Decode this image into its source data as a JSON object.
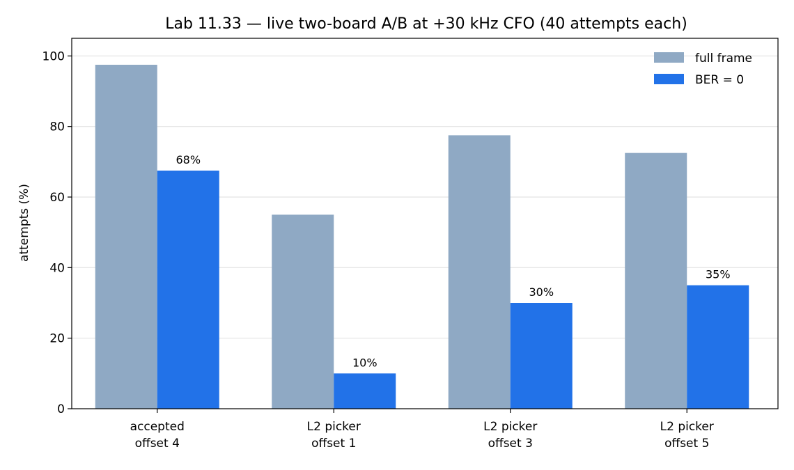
{
  "chart_data": {
    "type": "bar",
    "title": "Lab 11.33 — live two-board A/B at +30 kHz CFO (40 attempts each)",
    "xlabel": "",
    "ylabel": "attempts (%)",
    "ylim": [
      0,
      105
    ],
    "yticks": [
      0,
      20,
      40,
      60,
      80,
      100
    ],
    "grid": "horizontal",
    "legend_position": "top-right",
    "categories": [
      [
        "accepted",
        "offset 4"
      ],
      [
        "L2 picker",
        "offset 1"
      ],
      [
        "L2 picker",
        "offset 3"
      ],
      [
        "L2 picker",
        "offset 5"
      ]
    ],
    "series": [
      {
        "name": "full frame",
        "color": "#8fa9c4",
        "values": [
          97.5,
          55,
          77.5,
          72.5
        ],
        "labels": [
          "",
          "",
          "",
          ""
        ]
      },
      {
        "name": "BER = 0",
        "color": "#2272e8",
        "values": [
          67.5,
          10,
          30,
          35
        ],
        "labels": [
          "68%",
          "10%",
          "30%",
          "35%"
        ]
      }
    ]
  }
}
